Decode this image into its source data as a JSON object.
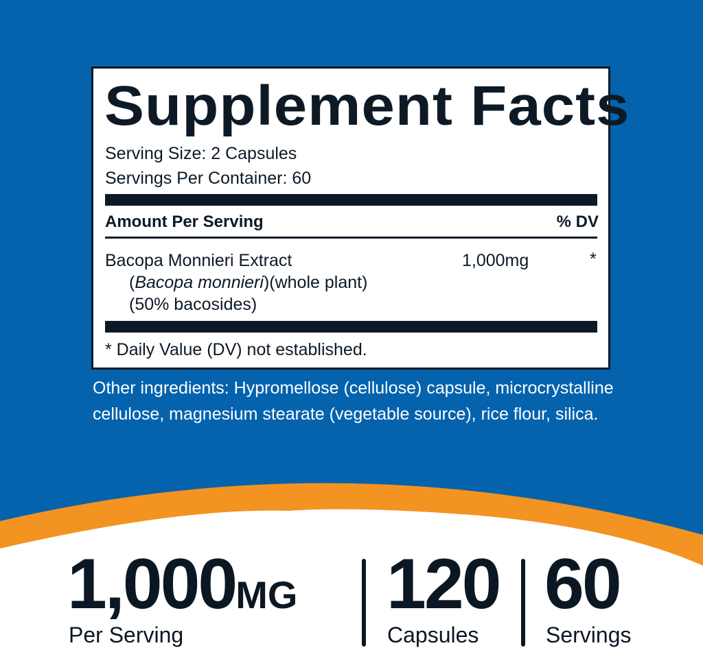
{
  "colors": {
    "background_blue": "#0563ae",
    "accent_orange": "#f39322",
    "text_dark": "#0d1a26"
  },
  "facts": {
    "title": "Supplement Facts",
    "serving_size": "Serving Size: 2 Capsules",
    "servings_per_container": "Servings Per Container: 60",
    "amount_header": "Amount Per Serving",
    "dv_header": "% DV",
    "ingredient": {
      "name": "Bacopa Monnieri Extract",
      "latin_open": "(",
      "latin": "Bacopa monnieri",
      "latin_rest": ")(whole plant)",
      "standardization": "(50% bacosides)",
      "amount": "1,000mg",
      "dv": "*"
    },
    "footnote": "* Daily Value (DV) not established."
  },
  "other_ingredients": [
    "Other ingredients: Hypromellose (cellulose) capsule, microcrystalline",
    "cellulose, magnesium stearate (vegetable source), rice flour, silica."
  ],
  "highlights": [
    {
      "value": "1,000",
      "unit": "MG",
      "label": "Per Serving"
    },
    {
      "value": "120",
      "label": "Capsules"
    },
    {
      "value": "60",
      "label": "Servings"
    }
  ]
}
